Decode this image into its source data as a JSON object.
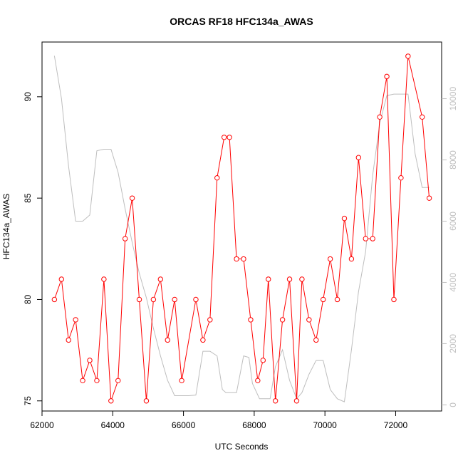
{
  "chart_data": {
    "type": "line",
    "title": "ORCAS RF18 HFC134a_AWAS",
    "xlabel": "UTC Seconds",
    "ylabel": "HFC134a_AWAS",
    "xlim": [
      62000,
      73300
    ],
    "ylim": [
      74.5,
      92.7
    ],
    "y2lim": [
      -200,
      11850
    ],
    "x_ticks": [
      62000,
      64000,
      66000,
      68000,
      70000,
      72000
    ],
    "y_ticks": [
      75,
      80,
      85,
      90
    ],
    "y2_ticks": [
      0,
      2000,
      4000,
      6000,
      8000,
      10000
    ],
    "grid": false,
    "series": [
      {
        "color": "#ff0000",
        "marker": "open-circle",
        "axis": "left",
        "x": [
          62350,
          62550,
          62750,
          62950,
          63150,
          63350,
          63550,
          63750,
          63950,
          64150,
          64350,
          64550,
          64750,
          64950,
          65150,
          65350,
          65550,
          65750,
          65950,
          66350,
          66550,
          66750,
          66950,
          67150,
          67300,
          67500,
          67700,
          67900,
          68100,
          68250,
          68400,
          68600,
          68800,
          69000,
          69200,
          69350,
          69550,
          69750,
          69950,
          70150,
          70350,
          70550,
          70750,
          70950,
          71150,
          71350,
          71550,
          71750,
          71950,
          72150,
          72350,
          72750,
          72950
        ],
        "y": [
          80,
          81,
          78,
          79,
          76,
          77,
          76,
          81,
          75,
          76,
          83,
          85,
          80,
          75,
          80,
          81,
          78,
          80,
          76,
          80,
          78,
          79,
          86,
          88,
          88,
          82,
          82,
          79,
          76,
          77,
          81,
          75,
          79,
          81,
          75,
          81,
          79,
          78,
          80,
          82,
          80,
          84,
          82,
          87,
          83,
          83,
          89,
          91,
          80,
          86,
          92,
          89,
          85
        ]
      },
      {
        "color": "#bebebe",
        "marker": "none",
        "axis": "right",
        "x": [
          62350,
          62550,
          62750,
          62950,
          63150,
          63350,
          63550,
          63750,
          63950,
          64150,
          64350,
          64550,
          64750,
          64950,
          65150,
          65350,
          65550,
          65750,
          65950,
          66150,
          66350,
          66550,
          66750,
          66950,
          67100,
          67200,
          67300,
          67500,
          67700,
          67850,
          67950,
          68150,
          68300,
          68450,
          68600,
          68800,
          69000,
          69200,
          69350,
          69550,
          69750,
          69950,
          70150,
          70350,
          70550,
          70750,
          70950,
          71150,
          71350,
          71550,
          71750,
          71950,
          72150,
          72350,
          72550,
          72750,
          72950
        ],
        "y": [
          11400,
          10000,
          7800,
          6000,
          6000,
          6200,
          8300,
          8350,
          8350,
          7600,
          6400,
          5300,
          4300,
          3500,
          2500,
          1600,
          800,
          300,
          300,
          300,
          320,
          1750,
          1750,
          1600,
          500,
          400,
          400,
          400,
          1600,
          1550,
          700,
          200,
          200,
          200,
          1250,
          1800,
          800,
          200,
          400,
          1000,
          1450,
          1450,
          500,
          200,
          100,
          1800,
          3700,
          5000,
          7500,
          9200,
          10100,
          10150,
          10150,
          10150,
          8200,
          7100,
          7100
        ]
      }
    ]
  }
}
